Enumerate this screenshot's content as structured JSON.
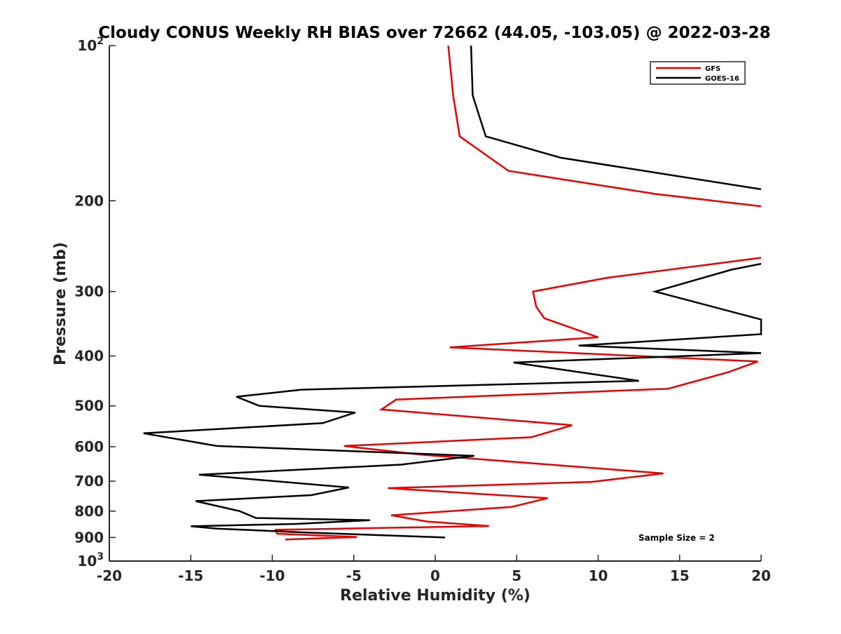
{
  "chart_data": {
    "type": "line",
    "title": "Cloudy CONUS Weekly RH BIAS over 72662 (44.05, -103.05) @ 2022-03-28",
    "xlabel": "Relative Humidity (%)",
    "ylabel": "Pressure (mb)",
    "xlim": [
      -20,
      20
    ],
    "ylim": [
      100,
      1000
    ],
    "y_scale": "log",
    "y_direction": "reversed",
    "grid": false,
    "legend_position": "top-right",
    "x_ticks": [
      {
        "value": -20,
        "label": "-20"
      },
      {
        "value": -15,
        "label": "-15"
      },
      {
        "value": -10,
        "label": "-10"
      },
      {
        "value": -5,
        "label": "-5"
      },
      {
        "value": 0,
        "label": "0"
      },
      {
        "value": 5,
        "label": "5"
      },
      {
        "value": 10,
        "label": "10"
      },
      {
        "value": 15,
        "label": "15"
      },
      {
        "value": 20,
        "label": "20"
      }
    ],
    "y_ticks": [
      {
        "value": 100,
        "label": "10",
        "exp": "2"
      },
      {
        "value": 200,
        "label": "200",
        "exp": ""
      },
      {
        "value": 300,
        "label": "300",
        "exp": ""
      },
      {
        "value": 400,
        "label": "400",
        "exp": ""
      },
      {
        "value": 500,
        "label": "500",
        "exp": ""
      },
      {
        "value": 600,
        "label": "600",
        "exp": ""
      },
      {
        "value": 700,
        "label": "700",
        "exp": ""
      },
      {
        "value": 800,
        "label": "800",
        "exp": ""
      },
      {
        "value": 900,
        "label": "900",
        "exp": ""
      },
      {
        "value": 1000,
        "label": "10",
        "exp": "3"
      }
    ],
    "series": [
      {
        "name": "GFS",
        "color": "#ee0000",
        "segments": [
          {
            "x": [
              0.8,
              1.1,
              1.5,
              4.5,
              13.5,
              20.0
            ],
            "y": [
              100,
              125,
              150,
              175,
              194,
              205
            ]
          },
          {
            "x": [
              20.0,
              10.6,
              6.0,
              6.2,
              6.7,
              10.0,
              0.9,
              19.8,
              18.0,
              14.3,
              -2.4,
              -3.3,
              8.4,
              5.9,
              -5.6,
              -0.8,
              14.0,
              9.6,
              -2.9,
              6.9,
              4.7,
              -2.7,
              -0.5,
              3.3,
              -9.8,
              -9.7,
              -4.8,
              -9.2
            ],
            "y": [
              258,
              282,
              300,
              321,
              338,
              368,
              385,
              410,
              430,
              463,
              486,
              508,
              545,
              575,
              598,
              622,
              676,
              702,
              722,
              755,
              785,
              815,
              838,
              855,
              870,
              885,
              898,
              908
            ]
          }
        ]
      },
      {
        "name": "GOES-16",
        "color": "#000000",
        "segments": [
          {
            "x": [
              2.2,
              2.3,
              3.1,
              7.7,
              20.0
            ],
            "y": [
              100,
              125,
              150,
              165,
              190
            ]
          },
          {
            "x": [
              20.0,
              18.2,
              13.5,
              20.0,
              20.0,
              8.8,
              20.0,
              4.8,
              12.5,
              -8.2,
              -12.2,
              -10.8,
              -4.9,
              -6.9,
              -17.9,
              -13.4,
              2.4,
              -2.1,
              -14.5,
              -5.3,
              -7.6,
              -14.7,
              -12.0,
              -11.0,
              -4.0,
              -8.5,
              -15.0,
              -13.4,
              -8.0,
              0.6
            ],
            "y": [
              265,
              272,
              300,
              340,
              363,
              382,
              395,
              412,
              447,
              465,
              480,
              500,
              515,
              540,
              565,
              598,
              625,
              650,
              680,
              720,
              745,
              765,
              800,
              825,
              833,
              847,
              856,
              865,
              880,
              900
            ]
          }
        ]
      }
    ],
    "annotations": [
      "Sample Size = 2"
    ]
  }
}
